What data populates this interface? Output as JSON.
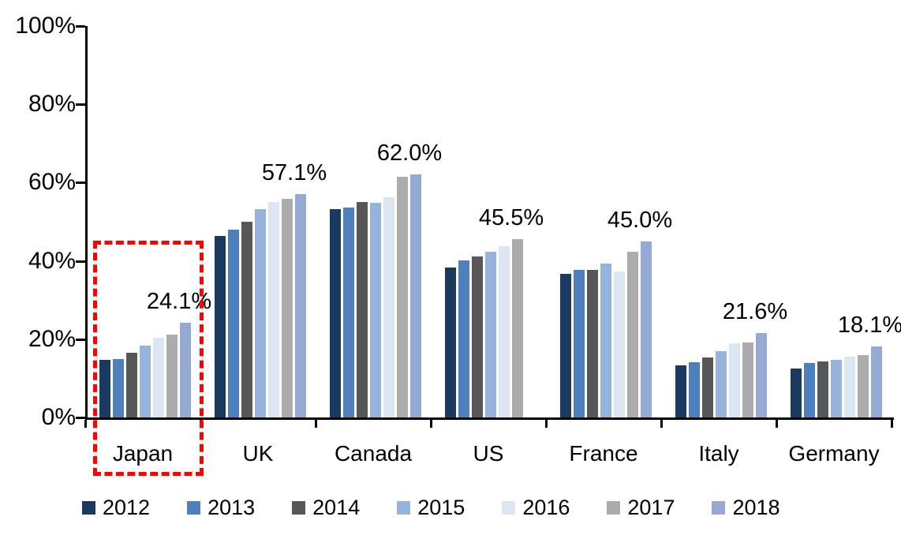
{
  "chart_data": {
    "type": "bar",
    "title": "",
    "categories": [
      "Japan",
      "UK",
      "Canada",
      "US",
      "France",
      "Italy",
      "Germany"
    ],
    "series": [
      {
        "name": "2012",
        "color": "#1B3A5F",
        "values": [
          14.8,
          46.3,
          53.2,
          38.4,
          36.6,
          13.4,
          12.6
        ]
      },
      {
        "name": "2013",
        "color": "#4E80BD",
        "values": [
          15.0,
          48.0,
          53.7,
          40.2,
          37.8,
          14.2,
          14.0
        ]
      },
      {
        "name": "2014",
        "color": "#575757",
        "values": [
          16.6,
          50.1,
          55.0,
          41.2,
          37.7,
          15.4,
          14.4
        ]
      },
      {
        "name": "2015",
        "color": "#96B4DB",
        "values": [
          18.3,
          53.3,
          54.9,
          42.3,
          39.3,
          16.9,
          14.8
        ]
      },
      {
        "name": "2016",
        "color": "#DCE6F2",
        "values": [
          20.3,
          55.1,
          56.3,
          43.7,
          37.4,
          19.0,
          15.5
        ]
      },
      {
        "name": "2017",
        "color": "#ACACAC",
        "values": [
          21.2,
          55.9,
          61.5,
          45.5,
          42.4,
          19.2,
          16.0
        ]
      },
      {
        "name": "2018",
        "color": "#96A9D2",
        "values": [
          24.1,
          57.1,
          62.0,
          null,
          45.0,
          21.6,
          18.1
        ]
      }
    ],
    "data_labels": [
      {
        "category": "Japan",
        "text": "24.1%"
      },
      {
        "category": "UK",
        "text": "57.1%"
      },
      {
        "category": "Canada",
        "text": "62.0%"
      },
      {
        "category": "US",
        "text": "45.5%"
      },
      {
        "category": "France",
        "text": "45.0%"
      },
      {
        "category": "Italy",
        "text": "21.6%"
      },
      {
        "category": "Germany",
        "text": "18.1%"
      }
    ],
    "y_axis": {
      "min": 0,
      "max": 100,
      "tick_step": 20,
      "tick_labels": [
        "0%",
        "20%",
        "40%",
        "60%",
        "80%",
        "100%"
      ]
    },
    "legend": [
      "2012",
      "2013",
      "2014",
      "2015",
      "2016",
      "2017",
      "2018"
    ],
    "legend_position": "bottom",
    "grid": false,
    "annotations": [
      {
        "type": "highlight-box",
        "category": "Japan",
        "style": "dashed",
        "color": "#FE0000"
      }
    ]
  },
  "colors": {
    "background": "#FFFFFF",
    "axis": "#000000",
    "text": "#000000",
    "highlight": "#FE0000"
  }
}
